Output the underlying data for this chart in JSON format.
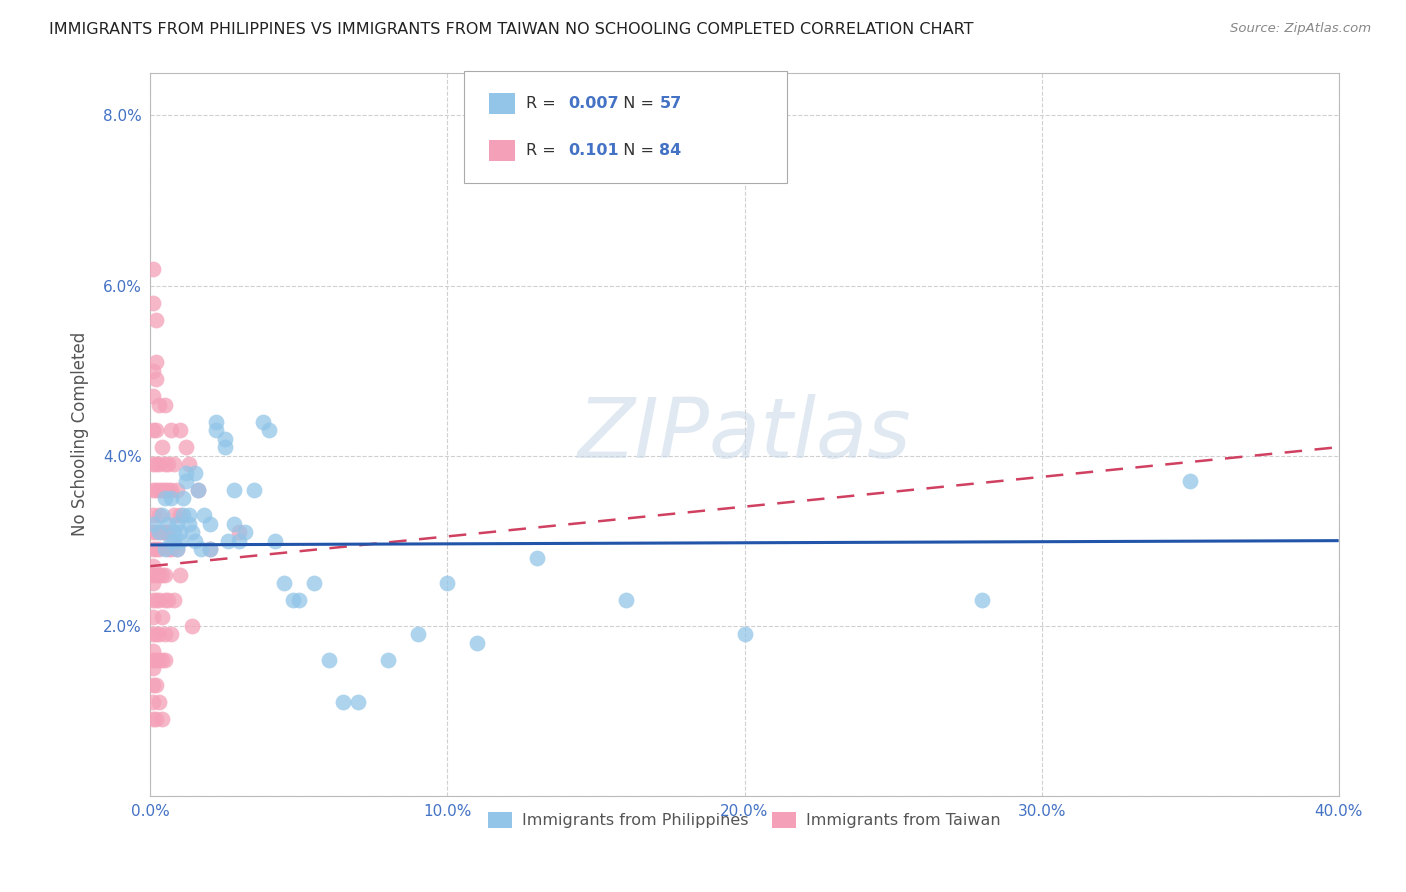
{
  "title": "IMMIGRANTS FROM PHILIPPINES VS IMMIGRANTS FROM TAIWAN NO SCHOOLING COMPLETED CORRELATION CHART",
  "source": "Source: ZipAtlas.com",
  "ylabel": "No Schooling Completed",
  "xlim": [
    0.0,
    0.4
  ],
  "ylim": [
    0.0,
    0.085
  ],
  "xticks": [
    0.0,
    0.1,
    0.2,
    0.3,
    0.4
  ],
  "yticks": [
    0.0,
    0.02,
    0.04,
    0.06,
    0.08
  ],
  "xtick_labels": [
    "0.0%",
    "10.0%",
    "20.0%",
    "30.0%",
    "40.0%"
  ],
  "ytick_labels": [
    "",
    "2.0%",
    "4.0%",
    "6.0%",
    "8.0%"
  ],
  "color_philippines": "#92C5E8",
  "color_taiwan": "#F4A0B8",
  "R_philippines": 0.007,
  "N_philippines": 57,
  "R_taiwan": 0.101,
  "N_taiwan": 84,
  "legend_labels": [
    "Immigrants from Philippines",
    "Immigrants from Taiwan"
  ],
  "watermark": "ZIPatlas",
  "background_color": "#ffffff",
  "grid_color": "#d0d0d0",
  "philippines_line_color": "#2255AA",
  "taiwan_line_color": "#D04060",
  "philippines_scatter": [
    [
      0.001,
      0.032
    ],
    [
      0.003,
      0.031
    ],
    [
      0.004,
      0.033
    ],
    [
      0.005,
      0.035
    ],
    [
      0.005,
      0.029
    ],
    [
      0.006,
      0.032
    ],
    [
      0.007,
      0.035
    ],
    [
      0.007,
      0.03
    ],
    [
      0.008,
      0.031
    ],
    [
      0.008,
      0.03
    ],
    [
      0.009,
      0.032
    ],
    [
      0.009,
      0.029
    ],
    [
      0.01,
      0.03
    ],
    [
      0.01,
      0.031
    ],
    [
      0.011,
      0.033
    ],
    [
      0.011,
      0.035
    ],
    [
      0.012,
      0.038
    ],
    [
      0.012,
      0.037
    ],
    [
      0.013,
      0.032
    ],
    [
      0.013,
      0.033
    ],
    [
      0.014,
      0.031
    ],
    [
      0.015,
      0.03
    ],
    [
      0.015,
      0.038
    ],
    [
      0.016,
      0.036
    ],
    [
      0.017,
      0.029
    ],
    [
      0.018,
      0.033
    ],
    [
      0.02,
      0.029
    ],
    [
      0.02,
      0.032
    ],
    [
      0.022,
      0.044
    ],
    [
      0.022,
      0.043
    ],
    [
      0.025,
      0.041
    ],
    [
      0.025,
      0.042
    ],
    [
      0.026,
      0.03
    ],
    [
      0.028,
      0.036
    ],
    [
      0.028,
      0.032
    ],
    [
      0.03,
      0.03
    ],
    [
      0.032,
      0.031
    ],
    [
      0.035,
      0.036
    ],
    [
      0.038,
      0.044
    ],
    [
      0.04,
      0.043
    ],
    [
      0.042,
      0.03
    ],
    [
      0.045,
      0.025
    ],
    [
      0.048,
      0.023
    ],
    [
      0.05,
      0.023
    ],
    [
      0.055,
      0.025
    ],
    [
      0.06,
      0.016
    ],
    [
      0.065,
      0.011
    ],
    [
      0.07,
      0.011
    ],
    [
      0.08,
      0.016
    ],
    [
      0.09,
      0.019
    ],
    [
      0.1,
      0.025
    ],
    [
      0.11,
      0.018
    ],
    [
      0.13,
      0.028
    ],
    [
      0.16,
      0.023
    ],
    [
      0.2,
      0.019
    ],
    [
      0.28,
      0.023
    ],
    [
      0.35,
      0.037
    ]
  ],
  "taiwan_scatter": [
    [
      0.001,
      0.062
    ],
    [
      0.001,
      0.058
    ],
    [
      0.001,
      0.05
    ],
    [
      0.001,
      0.047
    ],
    [
      0.001,
      0.043
    ],
    [
      0.001,
      0.039
    ],
    [
      0.001,
      0.036
    ],
    [
      0.001,
      0.033
    ],
    [
      0.001,
      0.031
    ],
    [
      0.001,
      0.029
    ],
    [
      0.001,
      0.027
    ],
    [
      0.001,
      0.026
    ],
    [
      0.001,
      0.025
    ],
    [
      0.001,
      0.023
    ],
    [
      0.001,
      0.021
    ],
    [
      0.001,
      0.019
    ],
    [
      0.001,
      0.017
    ],
    [
      0.001,
      0.016
    ],
    [
      0.001,
      0.015
    ],
    [
      0.001,
      0.013
    ],
    [
      0.001,
      0.011
    ],
    [
      0.001,
      0.009
    ],
    [
      0.002,
      0.056
    ],
    [
      0.002,
      0.051
    ],
    [
      0.002,
      0.049
    ],
    [
      0.002,
      0.043
    ],
    [
      0.002,
      0.039
    ],
    [
      0.002,
      0.036
    ],
    [
      0.002,
      0.031
    ],
    [
      0.002,
      0.029
    ],
    [
      0.002,
      0.026
    ],
    [
      0.002,
      0.023
    ],
    [
      0.002,
      0.019
    ],
    [
      0.002,
      0.016
    ],
    [
      0.002,
      0.013
    ],
    [
      0.002,
      0.009
    ],
    [
      0.003,
      0.046
    ],
    [
      0.003,
      0.039
    ],
    [
      0.003,
      0.036
    ],
    [
      0.003,
      0.033
    ],
    [
      0.003,
      0.029
    ],
    [
      0.003,
      0.026
    ],
    [
      0.003,
      0.023
    ],
    [
      0.003,
      0.019
    ],
    [
      0.003,
      0.016
    ],
    [
      0.003,
      0.011
    ],
    [
      0.004,
      0.041
    ],
    [
      0.004,
      0.036
    ],
    [
      0.004,
      0.031
    ],
    [
      0.004,
      0.026
    ],
    [
      0.004,
      0.021
    ],
    [
      0.004,
      0.016
    ],
    [
      0.004,
      0.009
    ],
    [
      0.005,
      0.046
    ],
    [
      0.005,
      0.039
    ],
    [
      0.005,
      0.036
    ],
    [
      0.005,
      0.031
    ],
    [
      0.005,
      0.026
    ],
    [
      0.005,
      0.023
    ],
    [
      0.005,
      0.019
    ],
    [
      0.005,
      0.016
    ],
    [
      0.006,
      0.039
    ],
    [
      0.006,
      0.036
    ],
    [
      0.006,
      0.031
    ],
    [
      0.006,
      0.029
    ],
    [
      0.006,
      0.023
    ],
    [
      0.007,
      0.043
    ],
    [
      0.007,
      0.036
    ],
    [
      0.007,
      0.029
    ],
    [
      0.007,
      0.019
    ],
    [
      0.008,
      0.039
    ],
    [
      0.008,
      0.033
    ],
    [
      0.008,
      0.023
    ],
    [
      0.009,
      0.036
    ],
    [
      0.009,
      0.029
    ],
    [
      0.01,
      0.043
    ],
    [
      0.01,
      0.033
    ],
    [
      0.01,
      0.026
    ],
    [
      0.012,
      0.041
    ],
    [
      0.013,
      0.039
    ],
    [
      0.014,
      0.02
    ],
    [
      0.016,
      0.036
    ],
    [
      0.02,
      0.029
    ],
    [
      0.03,
      0.031
    ]
  ],
  "philippines_trendline": {
    "x": [
      0.0,
      0.4
    ],
    "y": [
      0.0295,
      0.03
    ]
  },
  "taiwan_trendline": {
    "x": [
      0.0,
      0.4
    ],
    "y": [
      0.027,
      0.041
    ]
  }
}
